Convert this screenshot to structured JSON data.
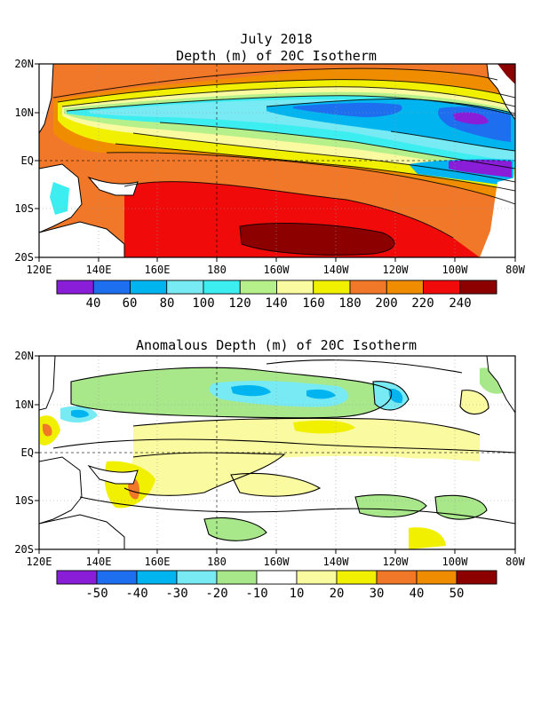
{
  "title": {
    "line1": "July 2018",
    "line2": "Depth (m) of 20C Isotherm",
    "line3": "Anomalous Depth (m) of 20C Isotherm"
  },
  "axes": {
    "lat_ticks": [
      "20N",
      "10N",
      "EQ",
      "10S",
      "20S"
    ],
    "lon_ticks": [
      "120E",
      "140E",
      "160E",
      "180",
      "160W",
      "140W",
      "120W",
      "100W",
      "80W"
    ]
  },
  "colorbars": {
    "depth": {
      "labels": [
        "40",
        "60",
        "80",
        "100",
        "120",
        "140",
        "160",
        "180",
        "200",
        "220",
        "240"
      ],
      "colors": [
        "#8a1ed8",
        "#1e6ef0",
        "#00b4f0",
        "#78eaf4",
        "#3ceef0",
        "#b6f08a",
        "#fafaa0",
        "#f0f000",
        "#f07828",
        "#f08c00",
        "#f00a0a",
        "#8c0000"
      ]
    },
    "anomaly": {
      "labels": [
        "-50",
        "-40",
        "-30",
        "-20",
        "-10",
        "10",
        "20",
        "30",
        "40",
        "50"
      ],
      "colors": [
        "#8a1ed8",
        "#1e6ef0",
        "#00b4f0",
        "#78eaf4",
        "#a8e88a",
        "#ffffff",
        "#fafaa0",
        "#f0f000",
        "#f07828",
        "#f08c00",
        "#8c0000"
      ]
    }
  }
}
